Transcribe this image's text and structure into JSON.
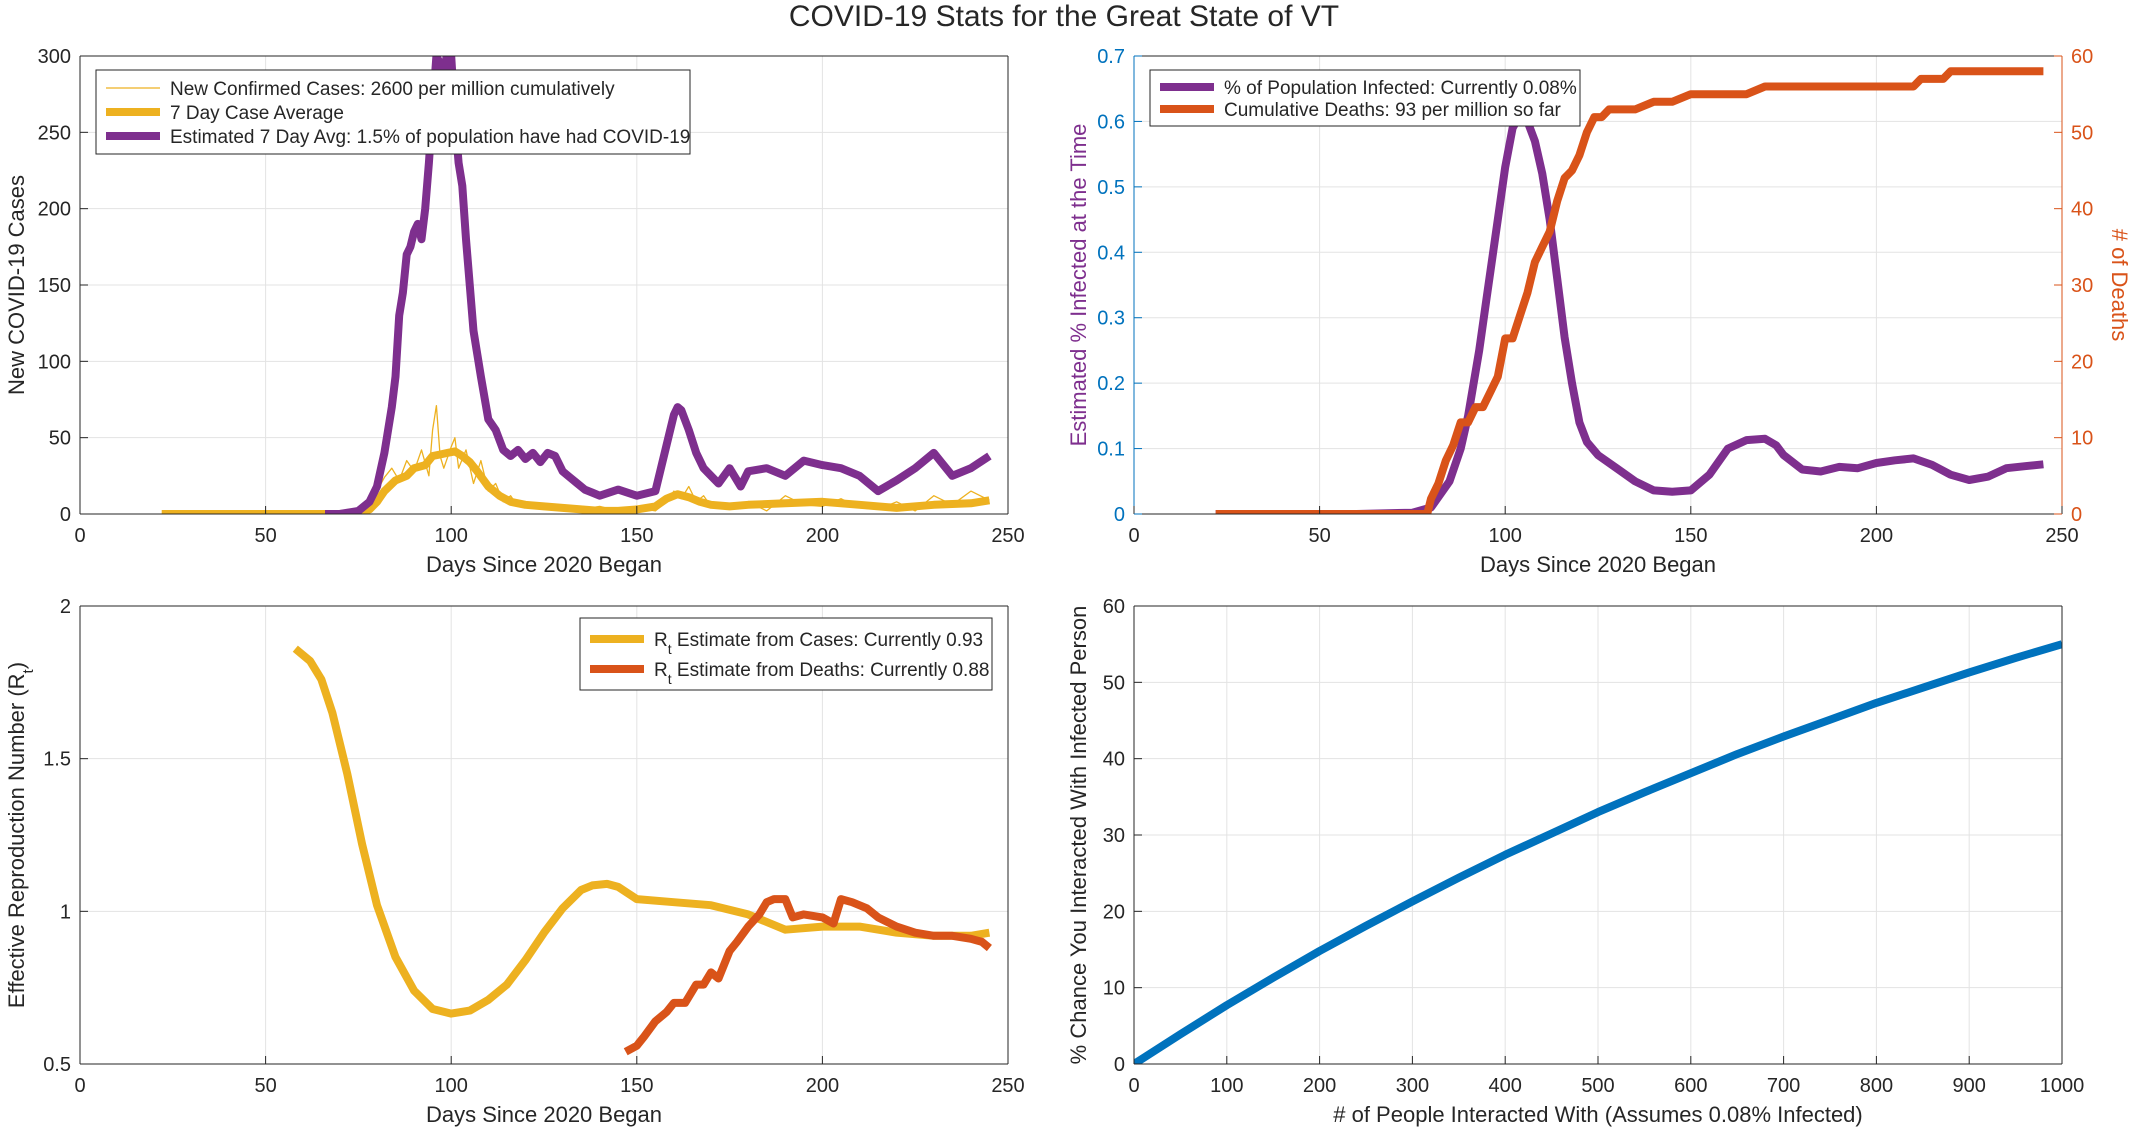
{
  "figure_title": "COVID-19 Stats for the Great State of VT",
  "chart_data": [
    {
      "type": "line",
      "xlabel": "Days Since 2020 Began",
      "ylabel": "New COVID-19 Cases",
      "xlim": [
        0,
        250
      ],
      "ylim": [
        0,
        300
      ],
      "xticks": [
        0,
        50,
        100,
        150,
        200,
        250
      ],
      "yticks": [
        0,
        50,
        100,
        150,
        200,
        250,
        300
      ],
      "grid": true,
      "legend_position": "top-left",
      "series": [
        {
          "name": "New Confirmed Cases: 2600 per million cumulatively",
          "color": "#EDB120",
          "x": [
            22,
            40,
            60,
            70,
            75,
            78,
            80,
            82,
            84,
            86,
            88,
            90,
            92,
            94,
            95,
            96,
            97,
            98,
            100,
            101,
            102,
            104,
            106,
            108,
            110,
            112,
            114,
            116,
            118,
            120,
            125,
            130,
            135,
            140,
            145,
            150,
            155,
            158,
            160,
            162,
            164,
            166,
            168,
            170,
            175,
            180,
            185,
            190,
            195,
            200,
            205,
            210,
            215,
            220,
            225,
            230,
            235,
            240,
            245
          ],
          "y": [
            0,
            0,
            0,
            1,
            3,
            8,
            15,
            24,
            30,
            22,
            35,
            28,
            42,
            25,
            55,
            71,
            38,
            30,
            44,
            50,
            30,
            42,
            20,
            35,
            15,
            20,
            8,
            12,
            5,
            8,
            4,
            6,
            3,
            5,
            2,
            4,
            2,
            8,
            15,
            10,
            18,
            8,
            12,
            5,
            3,
            8,
            2,
            12,
            6,
            5,
            10,
            4,
            3,
            8,
            2,
            12,
            6,
            15,
            9
          ]
        },
        {
          "name": "7 Day Case Average",
          "color": "#EDB120",
          "x": [
            22,
            40,
            60,
            70,
            75,
            78,
            80,
            82,
            85,
            88,
            90,
            93,
            95,
            97,
            99,
            101,
            103,
            105,
            107,
            110,
            113,
            116,
            120,
            125,
            130,
            135,
            140,
            145,
            150,
            155,
            158,
            161,
            164,
            167,
            170,
            175,
            180,
            190,
            200,
            210,
            220,
            230,
            240,
            245
          ],
          "y": [
            0,
            0,
            0,
            0,
            1,
            3,
            8,
            15,
            22,
            25,
            30,
            32,
            38,
            39,
            40,
            41,
            38,
            34,
            28,
            18,
            12,
            8,
            6,
            5,
            4,
            3,
            2,
            2,
            3,
            5,
            10,
            13,
            11,
            8,
            6,
            5,
            6,
            7,
            8,
            6,
            4,
            6,
            7,
            9
          ]
        },
        {
          "name": "Estimated 7 Day Avg: 1.5% of population have had COVID-19",
          "color": "#7E2F8E",
          "x": [
            66,
            70,
            75,
            78,
            80,
            82,
            84,
            85,
            86,
            87,
            88,
            89,
            90,
            91,
            92,
            93,
            94,
            95,
            96,
            97,
            98,
            99,
            100,
            101,
            102,
            103,
            104,
            106,
            108,
            110,
            112,
            114,
            116,
            118,
            120,
            122,
            124,
            126,
            128,
            130,
            132,
            134,
            136,
            138,
            140,
            145,
            150,
            155,
            158,
            160,
            161,
            162,
            164,
            166,
            168,
            170,
            172,
            175,
            178,
            180,
            185,
            190,
            195,
            200,
            205,
            210,
            215,
            220,
            225,
            230,
            232,
            235,
            240,
            245
          ],
          "y": [
            0,
            0,
            2,
            8,
            18,
            40,
            70,
            90,
            130,
            145,
            170,
            175,
            185,
            190,
            180,
            200,
            230,
            265,
            300,
            295,
            285,
            305,
            300,
            260,
            230,
            215,
            180,
            120,
            90,
            62,
            55,
            42,
            38,
            42,
            36,
            40,
            34,
            40,
            38,
            28,
            24,
            20,
            16,
            14,
            12,
            16,
            12,
            15,
            45,
            65,
            70,
            68,
            55,
            40,
            30,
            25,
            20,
            30,
            18,
            28,
            30,
            25,
            35,
            32,
            30,
            25,
            15,
            22,
            30,
            40,
            34,
            25,
            30,
            38
          ]
        }
      ]
    },
    {
      "type": "line",
      "xlabel": "Days Since 2020 Began",
      "ylabel": "Estimated % Infected at the Time",
      "ylabel_right": "# of Deaths",
      "xlim": [
        0,
        250
      ],
      "ylim": [
        0,
        0.7
      ],
      "ylim_right": [
        0,
        60
      ],
      "xticks": [
        0,
        50,
        100,
        150,
        200,
        250
      ],
      "yticks": [
        0,
        0.1,
        0.2,
        0.3,
        0.4,
        0.5,
        0.6,
        0.7
      ],
      "yticks_right": [
        0,
        10,
        20,
        30,
        40,
        50,
        60
      ],
      "grid": true,
      "legend_position": "top-left",
      "series": [
        {
          "name": "% of Population Infected: Currently 0.08%",
          "color": "#7E2F8E",
          "axis": "left",
          "x": [
            22,
            60,
            75,
            80,
            85,
            88,
            90,
            93,
            95,
            98,
            100,
            102,
            104,
            106,
            108,
            110,
            112,
            114,
            116,
            118,
            120,
            122,
            125,
            130,
            135,
            140,
            145,
            150,
            155,
            160,
            165,
            170,
            173,
            175,
            180,
            185,
            190,
            195,
            200,
            205,
            210,
            215,
            220,
            225,
            230,
            235,
            240,
            245
          ],
          "y": [
            0,
            0,
            0.002,
            0.01,
            0.05,
            0.1,
            0.15,
            0.25,
            0.33,
            0.45,
            0.53,
            0.59,
            0.61,
            0.6,
            0.57,
            0.52,
            0.45,
            0.36,
            0.27,
            0.2,
            0.14,
            0.11,
            0.09,
            0.07,
            0.05,
            0.036,
            0.034,
            0.036,
            0.06,
            0.1,
            0.113,
            0.115,
            0.105,
            0.09,
            0.068,
            0.065,
            0.072,
            0.07,
            0.078,
            0.082,
            0.085,
            0.075,
            0.06,
            0.052,
            0.057,
            0.07,
            0.073,
            0.076
          ]
        },
        {
          "name": "Cumulative Deaths: 93 per million so far",
          "color": "#D95319",
          "axis": "right",
          "x": [
            22,
            79,
            80,
            82,
            84,
            86,
            88,
            90,
            92,
            94,
            96,
            98,
            100,
            102,
            104,
            106,
            108,
            110,
            112,
            114,
            116,
            118,
            120,
            122,
            124,
            126,
            128,
            130,
            135,
            140,
            145,
            150,
            160,
            165,
            170,
            180,
            200,
            210,
            212,
            215,
            218,
            220,
            225,
            230,
            235,
            240,
            245
          ],
          "y": [
            0,
            0,
            2,
            4,
            7,
            9,
            12,
            12,
            14,
            14,
            16,
            18,
            23,
            23,
            26,
            29,
            33,
            35,
            37,
            41,
            44,
            45,
            47,
            50,
            52,
            52,
            53,
            53,
            53,
            54,
            54,
            55,
            55,
            55,
            56,
            56,
            56,
            56,
            57,
            57,
            57,
            58,
            58,
            58,
            58,
            58,
            58
          ]
        }
      ]
    },
    {
      "type": "line",
      "xlabel": "Days Since 2020 Began",
      "ylabel": "Effective Reproduction Number (R",
      "ylabel_sub": "t",
      "ylabel_end": ")",
      "xlim": [
        0,
        250
      ],
      "ylim": [
        0.5,
        2
      ],
      "xticks": [
        0,
        50,
        100,
        150,
        200,
        250
      ],
      "yticks": [
        0.5,
        1,
        1.5,
        2
      ],
      "grid": true,
      "legend_position": "top-right",
      "series": [
        {
          "name_prefix": "R",
          "name_sub": "t",
          "name": " Estimate from Cases: Currently 0.93",
          "color": "#EDB120",
          "x": [
            58,
            62,
            65,
            68,
            72,
            76,
            80,
            85,
            90,
            95,
            100,
            105,
            110,
            115,
            120,
            125,
            130,
            135,
            138,
            142,
            145,
            150,
            160,
            170,
            180,
            190,
            200,
            210,
            220,
            230,
            240,
            245
          ],
          "y": [
            1.86,
            1.82,
            1.76,
            1.65,
            1.45,
            1.22,
            1.02,
            0.85,
            0.74,
            0.68,
            0.665,
            0.675,
            0.71,
            0.76,
            0.84,
            0.93,
            1.01,
            1.07,
            1.085,
            1.09,
            1.08,
            1.04,
            1.03,
            1.02,
            0.99,
            0.94,
            0.95,
            0.95,
            0.93,
            0.92,
            0.92,
            0.93
          ]
        },
        {
          "name_prefix": "R",
          "name_sub": "t",
          "name": " Estimate from Deaths: Currently 0.88",
          "color": "#D95319",
          "x": [
            147,
            150,
            152,
            155,
            158,
            160,
            163,
            166,
            168,
            170,
            172,
            175,
            177,
            180,
            183,
            185,
            187,
            190,
            192,
            195,
            200,
            203,
            205,
            208,
            212,
            215,
            220,
            225,
            230,
            235,
            240,
            243,
            245
          ],
          "y": [
            0.54,
            0.56,
            0.59,
            0.64,
            0.67,
            0.7,
            0.7,
            0.76,
            0.76,
            0.8,
            0.78,
            0.87,
            0.9,
            0.95,
            0.99,
            1.03,
            1.04,
            1.04,
            0.98,
            0.99,
            0.98,
            0.96,
            1.04,
            1.03,
            1.01,
            0.98,
            0.95,
            0.93,
            0.92,
            0.92,
            0.91,
            0.9,
            0.88
          ]
        }
      ]
    },
    {
      "type": "line",
      "xlabel": "# of People Interacted With (Assumes 0.08% Infected)",
      "ylabel": "% Chance You Interacted With Infected Person",
      "xlim": [
        0,
        1000
      ],
      "ylim": [
        0,
        60
      ],
      "xticks": [
        0,
        100,
        200,
        300,
        400,
        500,
        600,
        700,
        800,
        900,
        1000
      ],
      "yticks": [
        0,
        10,
        20,
        30,
        40,
        50,
        60
      ],
      "grid": true,
      "series": [
        {
          "name": "",
          "color": "#0072BD",
          "x": [
            0,
            50,
            100,
            150,
            200,
            250,
            300,
            350,
            400,
            450,
            500,
            550,
            600,
            650,
            700,
            750,
            800,
            850,
            900,
            950,
            1000
          ],
          "y": [
            0,
            3.9,
            7.7,
            11.3,
            14.8,
            18.1,
            21.3,
            24.4,
            27.4,
            30.2,
            33.0,
            35.6,
            38.1,
            40.6,
            42.9,
            45.1,
            47.3,
            49.3,
            51.3,
            53.2,
            55.0
          ]
        }
      ]
    }
  ]
}
